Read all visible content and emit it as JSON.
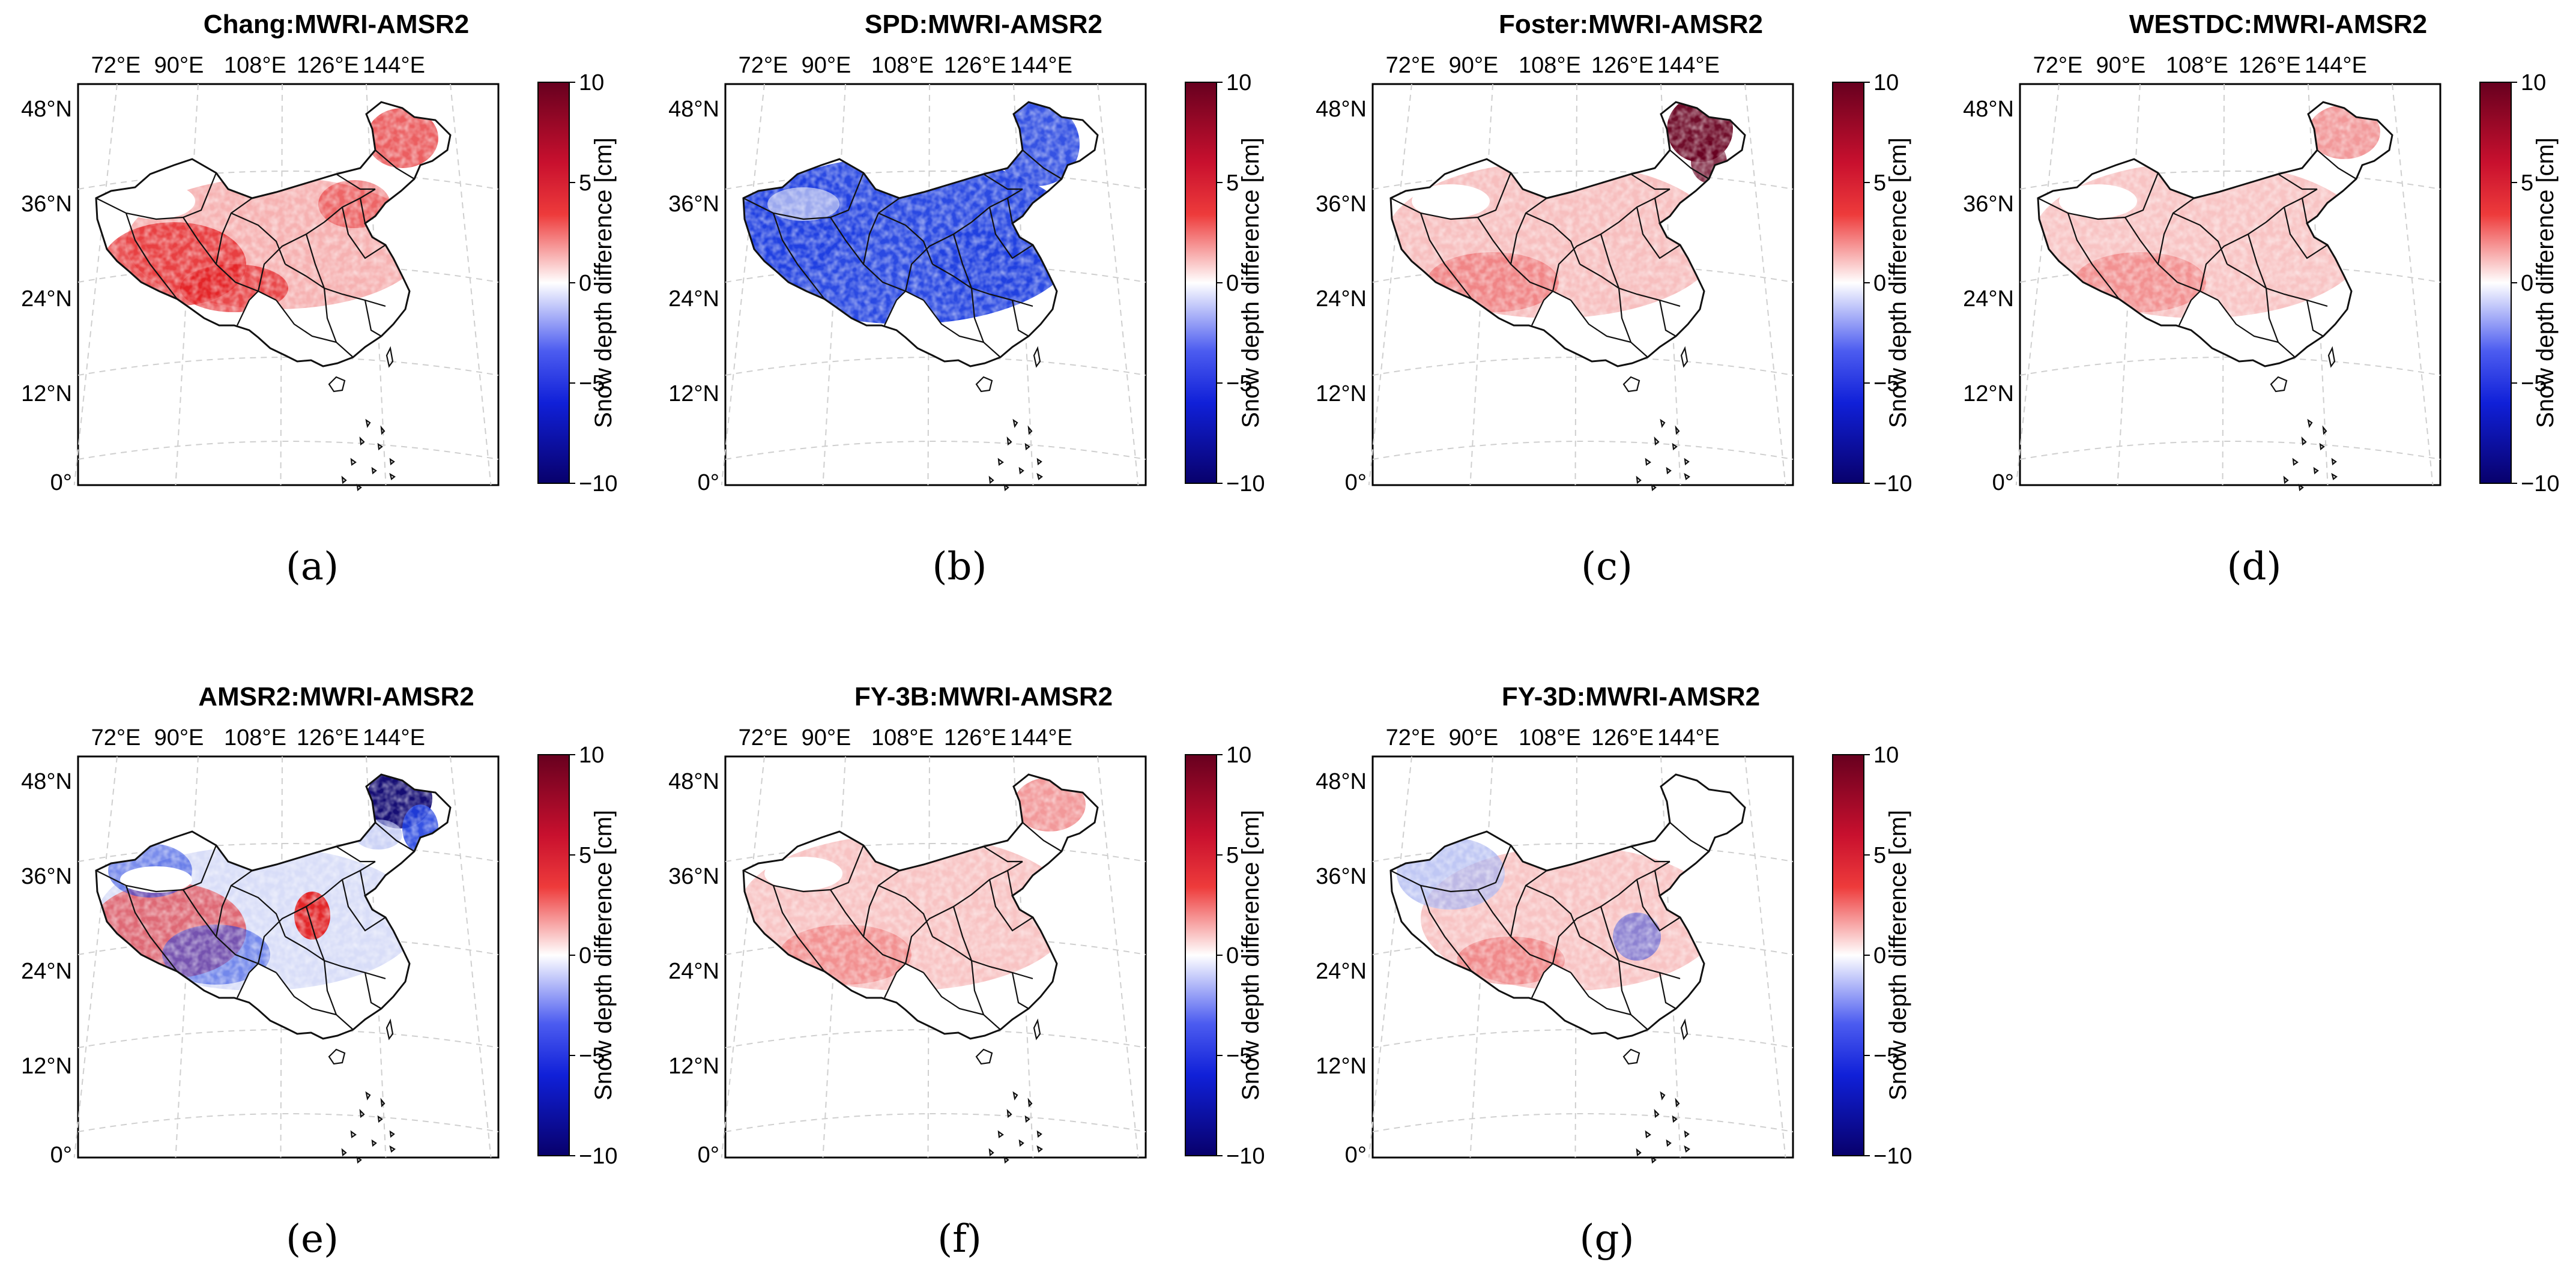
{
  "chart_data": [
    {
      "id": "a",
      "type": "heatmap",
      "title": "Chang:MWRI-AMSR2",
      "sub_label": "(a)",
      "pattern": "mixed-red",
      "lon_ticks": [
        "72°E",
        "90°E",
        "108°E",
        "126°E",
        "144°E"
      ],
      "lat_ticks": [
        "48°N",
        "36°N",
        "24°N",
        "12°N",
        "0°"
      ],
      "colorbar": {
        "label": "Snow depth difference [cm]",
        "ticks": [
          "10",
          "5",
          "0",
          "−5",
          "−10"
        ],
        "range": [
          -10,
          10
        ]
      }
    },
    {
      "id": "b",
      "type": "heatmap",
      "title": "SPD:MWRI-AMSR2",
      "sub_label": "(b)",
      "pattern": "blue",
      "lon_ticks": [
        "72°E",
        "90°E",
        "108°E",
        "126°E",
        "144°E"
      ],
      "lat_ticks": [
        "48°N",
        "36°N",
        "24°N",
        "12°N",
        "0°"
      ],
      "colorbar": {
        "label": "Snow depth difference [cm]",
        "ticks": [
          "10",
          "5",
          "0",
          "−5",
          "−10"
        ],
        "range": [
          -10,
          10
        ]
      }
    },
    {
      "id": "c",
      "type": "heatmap",
      "title": "Foster:MWRI-AMSR2",
      "sub_label": "(c)",
      "pattern": "light-red-ne-dark",
      "lon_ticks": [
        "72°E",
        "90°E",
        "108°E",
        "126°E",
        "144°E"
      ],
      "lat_ticks": [
        "48°N",
        "36°N",
        "24°N",
        "12°N",
        "0°"
      ],
      "colorbar": {
        "label": "Snow depth difference [cm]",
        "ticks": [
          "10",
          "5",
          "0",
          "−5",
          "−10"
        ],
        "range": [
          -10,
          10
        ]
      }
    },
    {
      "id": "d",
      "type": "heatmap",
      "title": "WESTDC:MWRI-AMSR2",
      "sub_label": "(d)",
      "pattern": "light-red",
      "lon_ticks": [
        "72°E",
        "90°E",
        "108°E",
        "126°E",
        "144°E"
      ],
      "lat_ticks": [
        "48°N",
        "36°N",
        "24°N",
        "12°N",
        "0°"
      ],
      "colorbar": {
        "label": "Snow depth difference [cm]",
        "ticks": [
          "10",
          "5",
          "0",
          "−5",
          "−10"
        ],
        "range": [
          -10,
          10
        ]
      }
    },
    {
      "id": "e",
      "type": "heatmap",
      "title": "AMSR2:MWRI-AMSR2",
      "sub_label": "(e)",
      "pattern": "mixed-blue-ne",
      "lon_ticks": [
        "72°E",
        "90°E",
        "108°E",
        "126°E",
        "144°E"
      ],
      "lat_ticks": [
        "48°N",
        "36°N",
        "24°N",
        "12°N",
        "0°"
      ],
      "colorbar": {
        "label": "Snow depth difference [cm]",
        "ticks": [
          "10",
          "5",
          "0",
          "−5",
          "−10"
        ],
        "range": [
          -10,
          10
        ]
      }
    },
    {
      "id": "f",
      "type": "heatmap",
      "title": "FY-3B:MWRI-AMSR2",
      "sub_label": "(f)",
      "pattern": "light-red",
      "lon_ticks": [
        "72°E",
        "90°E",
        "108°E",
        "126°E",
        "144°E"
      ],
      "lat_ticks": [
        "48°N",
        "36°N",
        "24°N",
        "12°N",
        "0°"
      ],
      "colorbar": {
        "label": "Snow depth difference [cm]",
        "ticks": [
          "10",
          "5",
          "0",
          "−5",
          "−10"
        ],
        "range": [
          -10,
          10
        ]
      }
    },
    {
      "id": "g",
      "type": "heatmap",
      "title": "FY-3D:MWRI-AMSR2",
      "sub_label": "(g)",
      "pattern": "light-red-blue-west",
      "lon_ticks": [
        "72°E",
        "90°E",
        "108°E",
        "126°E",
        "144°E"
      ],
      "lat_ticks": [
        "48°N",
        "36°N",
        "24°N",
        "12°N",
        "0°"
      ],
      "colorbar": {
        "label": "Snow depth difference [cm]",
        "ticks": [
          "10",
          "5",
          "0",
          "−5",
          "−10"
        ],
        "range": [
          -10,
          10
        ]
      }
    }
  ],
  "colors": {
    "map_outline": "#111111",
    "graticule": "#cfcfcf",
    "dark_red": "#67001f",
    "red": "#e31a1c",
    "light_red": "#f4a3a3",
    "white": "#ffffff",
    "light_blue": "#a9b4f0",
    "blue": "#1f3fe0",
    "dark_blue": "#08006b"
  }
}
